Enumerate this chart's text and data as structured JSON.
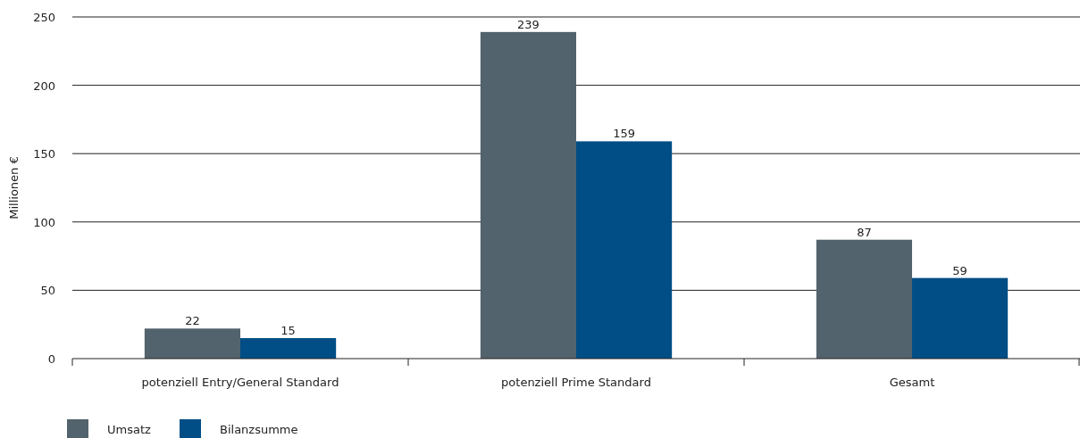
{
  "chart_data": {
    "type": "bar",
    "ylabel": "Millionen €",
    "categories": [
      "potenziell Entry/General Standard",
      "potenziell Prime Standard",
      "Gesamt"
    ],
    "series": [
      {
        "name": "Umsatz",
        "color": "#53636d",
        "values": [
          22,
          239,
          87
        ]
      },
      {
        "name": "Bilanzsumme",
        "color": "#004e85",
        "values": [
          15,
          159,
          59
        ]
      }
    ],
    "ylim": [
      0,
      250
    ],
    "yticks": [
      0,
      50,
      100,
      150,
      200,
      250
    ],
    "grid": "y",
    "data_labels": true,
    "legend": "bottom left"
  }
}
